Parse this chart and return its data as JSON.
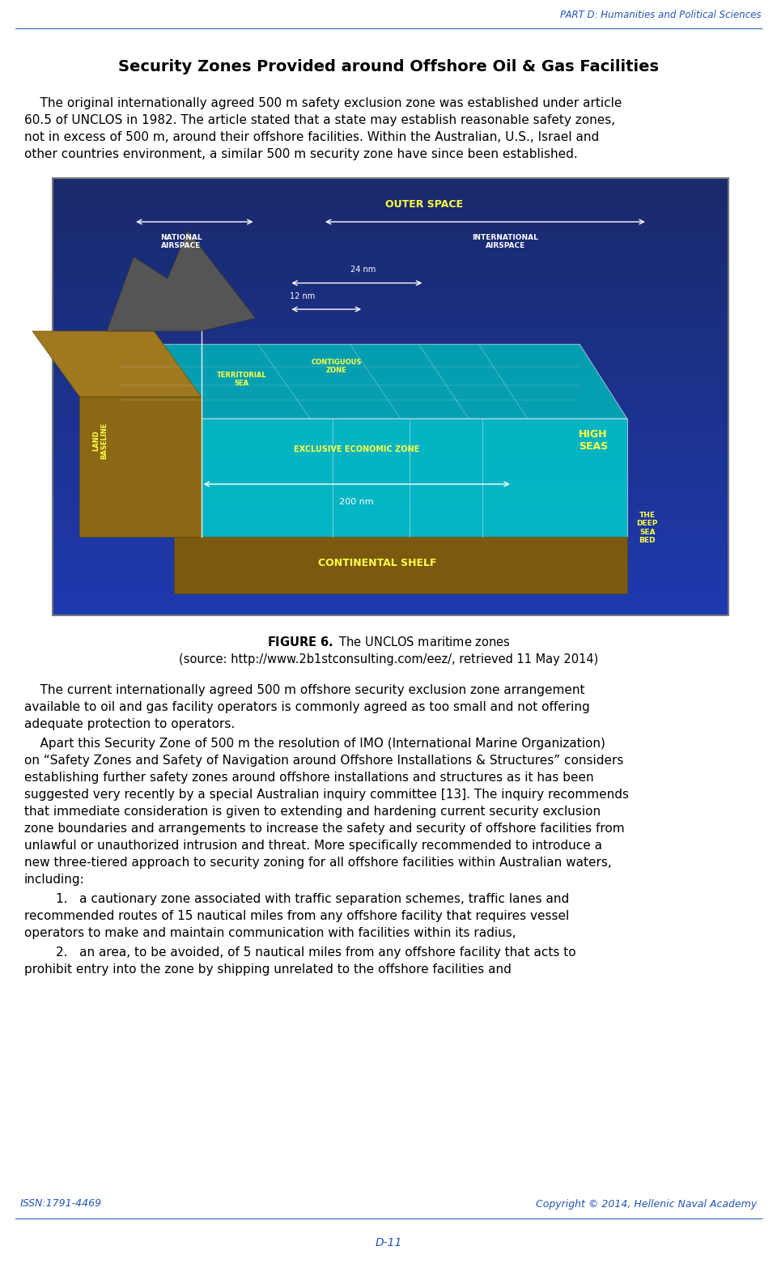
{
  "header_text": "PART D: Humanities and Political Sciences",
  "header_color": "#2255BB",
  "header_line_color": "#3366CC",
  "title": "Security Zones Provided around Offshore Oil & Gas Facilities",
  "figure_caption_bold": "FIGURE 6.",
  "figure_caption_rest": " The UNCLOS maritime zones",
  "figure_caption_line2": "(source: http://www.2b1stconsulting.com/eez/, retrieved 11 May 2014)",
  "footer_left": "ISSN:1791-4469",
  "footer_right": "Copyright © 2014, Hellenic Naval Academy",
  "footer_page": "D-11",
  "footer_color": "#2255BB",
  "bg_color": "#FFFFFF",
  "text_color": "#000000",
  "img_bg_top": "#1a2a6c",
  "img_bg_bot": "#2244aa",
  "img_border": "#555555",
  "para1_lines": [
    "    The original internationally agreed 500 m safety exclusion zone was established under article",
    "60.5 of UNCLOS in 1982. The article stated that a state may establish reasonable safety zones,",
    "not in excess of 500 m, around their offshore facilities. Within the Australian, U.S., Israel and",
    "other countries environment, a similar 500 m security zone have since been established."
  ],
  "para2_lines": [
    "    The current internationally agreed 500 m offshore security exclusion zone arrangement",
    "available to oil and gas facility operators is commonly agreed as too small and not offering",
    "adequate protection to operators."
  ],
  "para3_lines": [
    "    Apart this Security Zone of 500 m the resolution of IMO (International Marine Organization)",
    "on “Safety Zones and Safety of Navigation around Offshore Installations & Structures” considers",
    "establishing further safety zones around offshore installations and structures as it has been",
    "suggested very recently by a special Australian inquiry committee [13]. The inquiry recommends",
    "that immediate consideration is given to extending and hardening current security exclusion",
    "zone boundaries and arrangements to increase the safety and security of offshore facilities from",
    "unlawful or unauthorized intrusion and threat. More specifically recommended to introduce a",
    "new three-tiered approach to security zoning for all offshore facilities within Australian waters,",
    "including:"
  ],
  "para4_lines": [
    "        1.   a cautionary zone associated with traffic separation schemes, traffic lanes and",
    "recommended routes of 15 nautical miles from any offshore facility that requires vessel",
    "operators to make and maintain communication with facilities within its radius,"
  ],
  "para5_lines": [
    "        2.   an area, to be avoided, of 5 nautical miles from any offshore facility that acts to",
    "prohibit entry into the zone by shipping unrelated to the offshore facilities and"
  ]
}
